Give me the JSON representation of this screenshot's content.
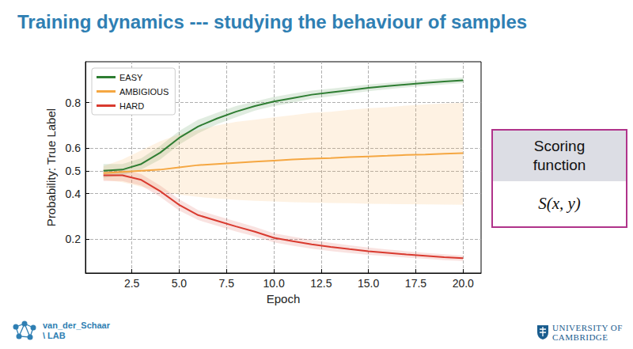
{
  "slide": {
    "title": "Training dynamics --- studying the behaviour of samples",
    "box": {
      "header": "Scoring function",
      "formula": "S(x, y)"
    },
    "footer": {
      "left": [
        "van_der_Schaar",
        "\\ LAB"
      ],
      "right": [
        "UNIVERSITY OF",
        "CAMBRIDGE"
      ]
    }
  },
  "chart_data": {
    "type": "line",
    "x_label": "Epoch",
    "y_label": "Probability: True Label",
    "x": [
      1,
      2,
      3,
      4,
      5,
      6,
      7,
      8,
      9,
      10,
      11,
      12,
      13,
      14,
      15,
      16,
      17,
      18,
      19,
      20
    ],
    "xlim": [
      0.05,
      20.95
    ],
    "xticks": [
      2.5,
      {
        "value": 5,
        "label": "5.0"
      },
      7.5,
      {
        "value": 10,
        "label": "10.0"
      },
      12.5,
      {
        "value": 15,
        "label": "15.0"
      },
      17.5,
      {
        "value": 20,
        "label": "20.0"
      }
    ],
    "ylim": [
      0.05,
      0.98
    ],
    "yticks": [
      0.2,
      0.4,
      0.5,
      0.6,
      0.8
    ],
    "grid": true,
    "legend": "upper left",
    "series": [
      {
        "name": "EASY",
        "color": "#2e7d32",
        "values": [
          0.5,
          0.505,
          0.53,
          0.58,
          0.645,
          0.695,
          0.73,
          0.76,
          0.785,
          0.805,
          0.82,
          0.835,
          0.845,
          0.855,
          0.865,
          0.873,
          0.88,
          0.887,
          0.893,
          0.898
        ],
        "lower": [
          0.47,
          0.48,
          0.505,
          0.55,
          0.615,
          0.665,
          0.705,
          0.735,
          0.765,
          0.785,
          0.8,
          0.817,
          0.828,
          0.84,
          0.85,
          0.859,
          0.867,
          0.874,
          0.88,
          0.886
        ],
        "upper": [
          0.53,
          0.53,
          0.555,
          0.61,
          0.675,
          0.725,
          0.755,
          0.785,
          0.805,
          0.825,
          0.84,
          0.853,
          0.862,
          0.87,
          0.88,
          0.887,
          0.893,
          0.9,
          0.906,
          0.91
        ]
      },
      {
        "name": "AMBIGIOUS",
        "color": "#f5a742",
        "values": [
          0.49,
          0.495,
          0.5,
          0.505,
          0.515,
          0.525,
          0.53,
          0.535,
          0.54,
          0.545,
          0.55,
          0.553,
          0.556,
          0.56,
          0.563,
          0.566,
          0.57,
          0.572,
          0.575,
          0.578
        ],
        "lower": [
          0.46,
          0.45,
          0.43,
          0.41,
          0.395,
          0.385,
          0.378,
          0.372,
          0.368,
          0.365,
          0.362,
          0.36,
          0.358,
          0.357,
          0.355,
          0.354,
          0.353,
          0.352,
          0.351,
          0.35
        ],
        "upper": [
          0.52,
          0.55,
          0.59,
          0.63,
          0.66,
          0.68,
          0.7,
          0.715,
          0.725,
          0.735,
          0.745,
          0.755,
          0.76,
          0.768,
          0.775,
          0.78,
          0.787,
          0.792,
          0.796,
          0.8
        ]
      },
      {
        "name": "HARD",
        "color": "#d93a2f",
        "values": [
          0.48,
          0.48,
          0.46,
          0.41,
          0.35,
          0.305,
          0.28,
          0.255,
          0.232,
          0.205,
          0.19,
          0.176,
          0.165,
          0.155,
          0.146,
          0.139,
          0.132,
          0.126,
          0.12,
          0.115
        ],
        "lower": [
          0.455,
          0.455,
          0.435,
          0.385,
          0.325,
          0.283,
          0.258,
          0.233,
          0.211,
          0.185,
          0.17,
          0.157,
          0.147,
          0.138,
          0.13,
          0.124,
          0.118,
          0.113,
          0.107,
          0.103
        ],
        "upper": [
          0.505,
          0.505,
          0.485,
          0.435,
          0.375,
          0.327,
          0.302,
          0.277,
          0.253,
          0.225,
          0.21,
          0.195,
          0.183,
          0.172,
          0.162,
          0.154,
          0.146,
          0.139,
          0.133,
          0.127
        ]
      }
    ]
  }
}
